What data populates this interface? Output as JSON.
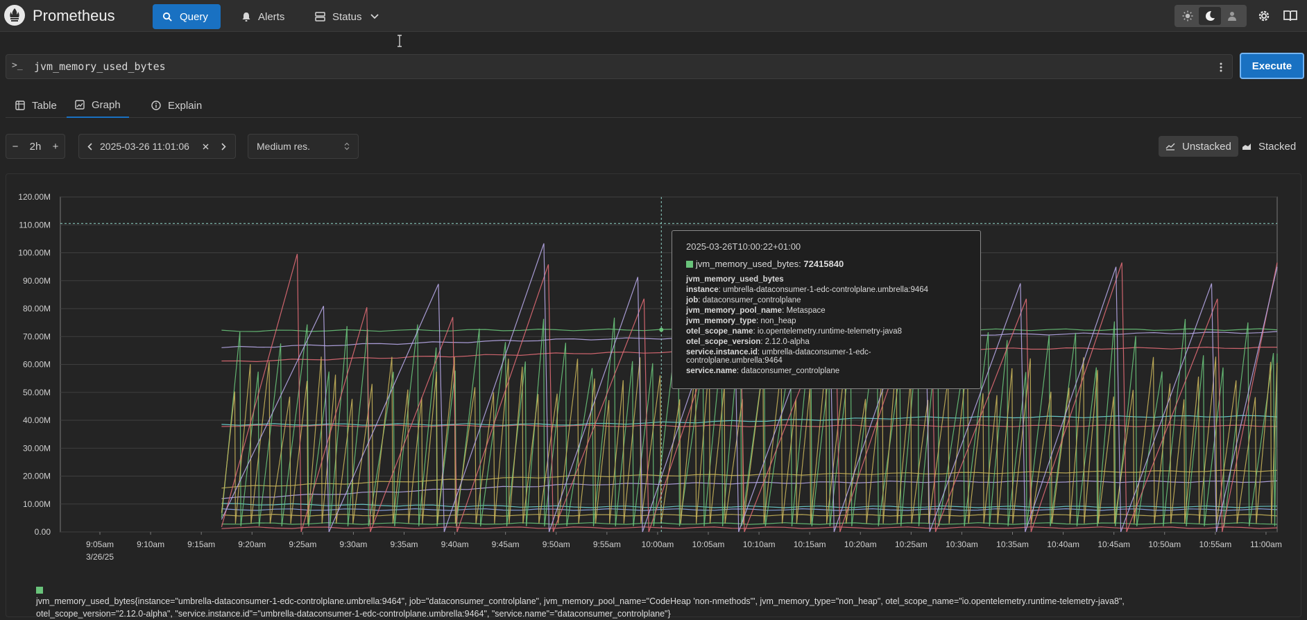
{
  "header": {
    "brand": "Prometheus",
    "nav": [
      {
        "label": "Query",
        "icon": "search-icon",
        "active": true
      },
      {
        "label": "Alerts",
        "icon": "bell-icon",
        "active": false
      },
      {
        "label": "Status",
        "icon": "server-icon",
        "active": false
      }
    ],
    "theme": {
      "options": [
        "sun-icon",
        "moon-icon",
        "auto-icon"
      ],
      "selected": "moon-icon"
    }
  },
  "query": {
    "prompt": ">_",
    "expression": "jvm_memory_used_bytes",
    "execute_label": "Execute"
  },
  "tabs": [
    {
      "label": "Table",
      "icon": "table-icon",
      "active": false
    },
    {
      "label": "Graph",
      "icon": "chart-icon",
      "active": true
    },
    {
      "label": "Explain",
      "icon": "info-icon",
      "active": false
    }
  ],
  "controls": {
    "range": "2h",
    "end_time": "2025-03-26 11:01:06",
    "resolution": "Medium res.",
    "unstacked_label": "Unstacked",
    "stacked_label": "Stacked",
    "stacked_mode": "unstacked"
  },
  "colors": {
    "accent": "#1971c2",
    "green": "#69c37a",
    "red": "#e06c75",
    "lavender": "#b7a9e8",
    "yellow": "#c7b25a",
    "cyan": "#6fd6d6"
  },
  "chart_data": {
    "type": "line",
    "y_ticks": [
      "120.00M",
      "110.00M",
      "100.00M",
      "90.00M",
      "80.00M",
      "70.00M",
      "60.00M",
      "50.00M",
      "40.00M",
      "30.00M",
      "20.00M",
      "10.00M",
      "0.00"
    ],
    "ylim": [
      0,
      120000000
    ],
    "x_ticks": [
      "9:05am",
      "9:10am",
      "9:15am",
      "9:20am",
      "9:25am",
      "9:30am",
      "9:35am",
      "9:40am",
      "9:45am",
      "9:50am",
      "9:55am",
      "10:00am",
      "10:05am",
      "10:10am",
      "10:15am",
      "10:20am",
      "10:25am",
      "10:30am",
      "10:35am",
      "10:40am",
      "10:45am",
      "10:50am",
      "10:55am",
      "11:00am"
    ],
    "x_date_label": "3/26/25",
    "x_range": [
      "2025-03-26T09:01:06",
      "2025-03-26T11:01:06"
    ],
    "data_start": "2025-03-26T09:17:00",
    "cursor_time": "2025-03-26T10:00:22",
    "series": [
      {
        "color": "#b7a9e8",
        "kind": "flat",
        "values": [
          66000000,
          69000000,
          70500000,
          71500000
        ]
      },
      {
        "color": "#e06c75",
        "kind": "flat",
        "values": [
          61000000,
          64000000,
          65500000,
          66000000
        ]
      },
      {
        "color": "#69c37a",
        "kind": "flat",
        "values": [
          72000000,
          72400000,
          72400000,
          72500000
        ]
      },
      {
        "color": "#6fd6d6",
        "kind": "flat",
        "values": [
          38500000,
          38500000,
          41000000,
          41500000
        ]
      },
      {
        "color": "#e06c75",
        "kind": "flat",
        "values": [
          38000000,
          38000000,
          38000000,
          38000000
        ]
      },
      {
        "color": "#c7b25a",
        "kind": "flat",
        "values": [
          16000000,
          20000000,
          21000000,
          22000000
        ]
      },
      {
        "color": "#b7a9e8",
        "kind": "flat",
        "values": [
          12000000,
          17000000,
          18000000,
          18000000
        ]
      },
      {
        "color": "#6fd6d6",
        "kind": "flat",
        "values": [
          10000000,
          9000000,
          9000000,
          9000000
        ]
      },
      {
        "color": "#8fa8e8",
        "kind": "flat",
        "values": [
          8000000,
          8000000,
          8000000,
          8000000
        ]
      },
      {
        "color": "#c7b25a",
        "kind": "flat",
        "values": [
          6000000,
          6000000,
          6000000,
          6000000
        ]
      },
      {
        "color": "#69c37a",
        "kind": "flat",
        "values": [
          3000000,
          3000000,
          3000000,
          3000000
        ]
      },
      {
        "color": "#e06c75",
        "kind": "flat",
        "values": [
          1500000,
          1500000,
          1500000,
          1500000
        ]
      },
      {
        "color": "#69c37a",
        "kind": "sawtooth",
        "period_min": 2.2,
        "low": 2000000,
        "high": 67000000
      },
      {
        "color": "#c7b25a",
        "kind": "sawtooth",
        "period_min": 1.7,
        "low": 3000000,
        "high": 55000000
      },
      {
        "color": "#e06c75",
        "kind": "sawtooth",
        "period_min": 8.5,
        "low": 0,
        "high": 90000000
      },
      {
        "color": "#b7a9e8",
        "kind": "sawtooth",
        "period_min": 9.5,
        "low": 0,
        "high": 92000000
      }
    ]
  },
  "tooltip": {
    "time": "2025-03-26T10:00:22+01:00",
    "series_label": "jvm_memory_used_bytes:",
    "value": "72415840",
    "metric": "jvm_memory_used_bytes",
    "labels": [
      {
        "k": "instance",
        "v": "umbrella-dataconsumer-1-edc-controlplane.umbrella:9464"
      },
      {
        "k": "job",
        "v": "dataconsumer_controlplane"
      },
      {
        "k": "jvm_memory_pool_name",
        "v": "Metaspace"
      },
      {
        "k": "jvm_memory_type",
        "v": "non_heap"
      },
      {
        "k": "otel_scope_name",
        "v": "io.opentelemetry.runtime-telemetry-java8"
      },
      {
        "k": "otel_scope_version",
        "v": "2.12.0-alpha"
      },
      {
        "k": "service.instance.id",
        "v": "umbrella-dataconsumer-1-edc-controlplane.umbrella:9464"
      },
      {
        "k": "service.name",
        "v": "dataconsumer_controlplane"
      }
    ]
  },
  "legend": {
    "entry": "jvm_memory_used_bytes{instance=\"umbrella-dataconsumer-1-edc-controlplane.umbrella:9464\", job=\"dataconsumer_controlplane\", jvm_memory_pool_name=\"CodeHeap 'non-nmethods'\", jvm_memory_type=\"non_heap\", otel_scope_name=\"io.opentelemetry.runtime-telemetry-java8\", otel_scope_version=\"2.12.0-alpha\", \"service.instance.id\"=\"umbrella-dataconsumer-1-edc-controlplane.umbrella:9464\", \"service.name\"=\"dataconsumer_controlplane\"}"
  }
}
